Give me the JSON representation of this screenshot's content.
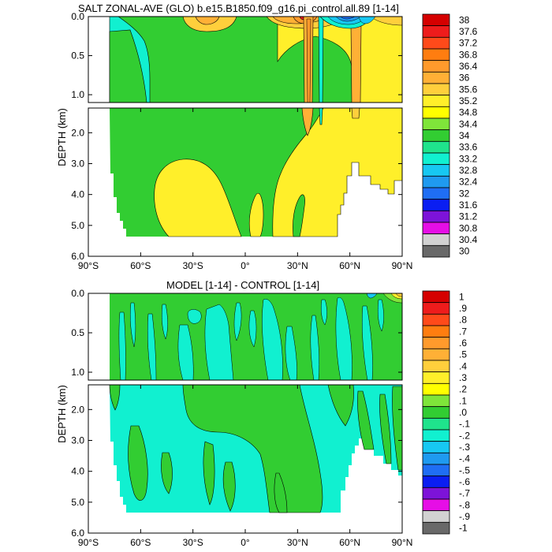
{
  "chart_data": [
    {
      "type": "heatmap",
      "title": "SALT ZONAL-AVE (GLO) b.e15.B1850.f09_g16.pi_control.all.89 [1-14]",
      "ylabel": "DEPTH (km)",
      "xlim": [
        -90,
        90
      ],
      "ylim_upper": [
        0,
        1.1
      ],
      "ylim_lower": [
        1.2,
        6.0
      ],
      "x_ticks": [
        -90,
        -60,
        -30,
        0,
        30,
        60,
        90
      ],
      "x_tick_labels": [
        "90°S",
        "60°S",
        "30°S",
        "0°",
        "30°N",
        "60°N",
        "90°N"
      ],
      "y_ticks_upper": [
        0.0,
        0.5,
        1.0
      ],
      "y_tick_labels_upper": [
        "0.0",
        "0.5",
        "1.0"
      ],
      "y_ticks_lower": [
        2.0,
        3.0,
        4.0,
        5.0,
        6.0
      ],
      "y_tick_labels_lower": [
        "2.0",
        "3.0",
        "4.0",
        "5.0",
        "6.0"
      ],
      "colorbar_labels": [
        "38",
        "37.6",
        "37.2",
        "36.8",
        "36.4",
        "36",
        "35.6",
        "35.2",
        "34.8",
        "34.4",
        "34",
        "33.6",
        "33.2",
        "32.8",
        "32.4",
        "32",
        "31.6",
        "31.2",
        "30.8",
        "30.4",
        "30"
      ],
      "colorbar_colors": [
        "#d50000",
        "#ee1c1c",
        "#ff4a1a",
        "#ff7d10",
        "#ff9a2c",
        "#ffb036",
        "#ffcf3c",
        "#ffef2a",
        "#ffff00",
        "#7fe53a",
        "#32cd32",
        "#1fe38c",
        "#11f0d0",
        "#17c8f2",
        "#1f9af0",
        "#1f6ef4",
        "#0a1ef2",
        "#7d13d9",
        "#e60ee6",
        "#d2d2d2",
        "#696969"
      ],
      "regions": [
        {
          "bin": "34.4-34.8",
          "lat_range": [
            -78,
            70
          ],
          "depth_range": [
            0.0,
            5.4
          ],
          "note": "background water column"
        },
        {
          "bin": "34.8-35.2",
          "lat_range": [
            -35,
            -5
          ],
          "depth_range": [
            2.6,
            5.4
          ],
          "note": "southern deep tongue"
        },
        {
          "bin": "34.8-35.2",
          "lat_range": [
            20,
            90
          ],
          "depth_range": [
            1.2,
            5.4
          ],
          "note": "northern deep water"
        },
        {
          "bin": "35.6-36.0",
          "lat_range": [
            -20,
            -10
          ],
          "depth_range": [
            0.0,
            0.08
          ],
          "note": "south subtropical surface maximum"
        },
        {
          "bin": "35.6-36.0",
          "lat_range": [
            26,
            45
          ],
          "depth_range": [
            0.0,
            1.8
          ],
          "note": "Mediterranean outflow column"
        },
        {
          "bin": "37.2-37.6",
          "lat_range": [
            36,
            40
          ],
          "depth_range": [
            0.0,
            0.05
          ],
          "note": "surface maximum"
        },
        {
          "bin": "34.0-34.4",
          "lat_range": [
            -50,
            -30
          ],
          "depth_range": [
            0.0,
            0.05
          ],
          "note": "southern surface"
        },
        {
          "bin": "< 32",
          "lat_range": [
            62,
            75
          ],
          "depth_range": [
            0.0,
            0.04
          ],
          "note": "Arctic fresh surface"
        }
      ]
    },
    {
      "type": "heatmap",
      "title": "MODEL [1-14] - CONTROL [1-14]",
      "ylabel": "DEPTH (km)",
      "xlim": [
        -90,
        90
      ],
      "ylim_upper": [
        0,
        1.1
      ],
      "ylim_lower": [
        1.2,
        6.0
      ],
      "x_ticks": [
        -90,
        -60,
        -30,
        0,
        30,
        60,
        90
      ],
      "x_tick_labels": [
        "90°S",
        "60°S",
        "30°S",
        "0°",
        "30°N",
        "60°N",
        "90°N"
      ],
      "y_ticks_upper": [
        0.0,
        0.5,
        1.0
      ],
      "y_tick_labels_upper": [
        "0.0",
        "0.5",
        "1.0"
      ],
      "y_ticks_lower": [
        2.0,
        3.0,
        4.0,
        5.0,
        6.0
      ],
      "y_tick_labels_lower": [
        "2.0",
        "3.0",
        "4.0",
        "5.0",
        "6.0"
      ],
      "colorbar_labels": [
        "1",
        ".9",
        ".8",
        ".7",
        ".6",
        ".5",
        ".4",
        ".3",
        ".2",
        ".1",
        ".0",
        "-.1",
        "-.2",
        "-.3",
        "-.4",
        "-.5",
        "-.6",
        "-.7",
        "-.8",
        "-.9",
        "-1"
      ],
      "colorbar_colors": [
        "#d50000",
        "#ee1c1c",
        "#ff4a1a",
        "#ff7d10",
        "#ff9a2c",
        "#ffb036",
        "#ffcf3c",
        "#ffef2a",
        "#ffff00",
        "#7fe53a",
        "#32cd32",
        "#1fe38c",
        "#11f0d0",
        "#17c8f2",
        "#1f9af0",
        "#1f6ef4",
        "#0a1ef2",
        "#7d13d9",
        "#e60ee6",
        "#d2d2d2",
        "#696969"
      ],
      "regions": [
        {
          "bin": "0 to 0.1",
          "lat_range": [
            -78,
            90
          ],
          "depth_range": [
            0.0,
            1.1
          ],
          "note": "upper ocean mostly small positive"
        },
        {
          "bin": "-0.1 to 0",
          "lat_range": [
            -78,
            90
          ],
          "depth_range": [
            1.2,
            5.4
          ],
          "note": "deep ocean mostly small negative"
        },
        {
          "bin": "0 to 0.1",
          "lat_range": [
            -10,
            30
          ],
          "depth_range": [
            1.2,
            5.4
          ],
          "note": "equatorial/north deep positive band"
        },
        {
          "bin": "0.1 to 0.2",
          "lat_range": [
            80,
            90
          ],
          "depth_range": [
            0.0,
            0.04
          ],
          "note": "Arctic surface positive"
        }
      ]
    }
  ]
}
